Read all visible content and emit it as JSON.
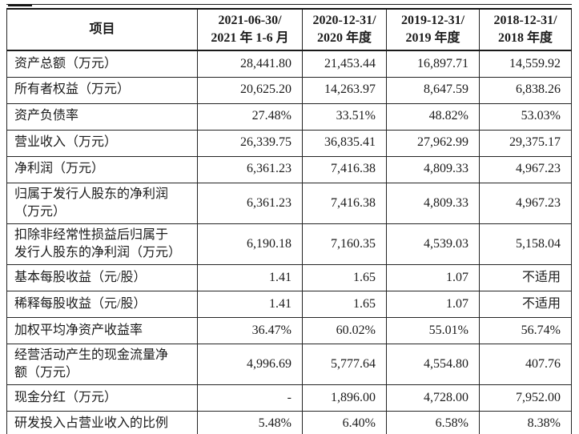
{
  "document": {
    "kind": "financial-summary-table",
    "colors": {
      "text": "#1b1b1b",
      "border": "#242424",
      "background": "#ffffff"
    }
  },
  "table": {
    "header": [
      "项目",
      "2021-06-30/\n2021 年 1-6 月",
      "2020-12-31/\n2020 年度",
      "2019-12-31/\n2019 年度",
      "2018-12-31/\n2018 年度"
    ],
    "rows": [
      {
        "label": "资产总额（万元）",
        "values": [
          "28,441.80",
          "21,453.44",
          "16,897.71",
          "14,559.92"
        ]
      },
      {
        "label": "所有者权益（万元）",
        "values": [
          "20,625.20",
          "14,263.97",
          "8,647.59",
          "6,838.26"
        ]
      },
      {
        "label": "资产负债率",
        "values": [
          "27.48%",
          "33.51%",
          "48.82%",
          "53.03%"
        ]
      },
      {
        "label": "营业收入（万元）",
        "values": [
          "26,339.75",
          "36,835.41",
          "27,962.99",
          "29,375.17"
        ]
      },
      {
        "label": "净利润（万元）",
        "values": [
          "6,361.23",
          "7,416.38",
          "4,809.33",
          "4,967.23"
        ]
      },
      {
        "label": "归属于发行人股东的净利润\n（万元）",
        "values": [
          "6,361.23",
          "7,416.38",
          "4,809.33",
          "4,967.23"
        ]
      },
      {
        "label": "扣除非经常性损益后归属于\n发行人股东的净利润（万元）",
        "values": [
          "6,190.18",
          "7,160.35",
          "4,539.03",
          "5,158.04"
        ]
      },
      {
        "label": "基本每股收益（元/股）",
        "values": [
          "1.41",
          "1.65",
          "1.07",
          "不适用"
        ]
      },
      {
        "label": "稀释每股收益（元/股）",
        "values": [
          "1.41",
          "1.65",
          "1.07",
          "不适用"
        ]
      },
      {
        "label": "加权平均净资产收益率",
        "values": [
          "36.47%",
          "60.02%",
          "55.01%",
          "56.74%"
        ]
      },
      {
        "label": "经营活动产生的现金流量净\n额（万元）",
        "values": [
          "4,996.69",
          "5,777.64",
          "4,554.80",
          "407.76"
        ]
      },
      {
        "label": "现金分红（万元）",
        "values": [
          "-",
          "1,896.00",
          "4,728.00",
          "7,952.00"
        ]
      },
      {
        "label": "研发投入占营业收入的比例",
        "values": [
          "5.48%",
          "6.40%",
          "6.58%",
          "8.38%"
        ]
      }
    ]
  }
}
